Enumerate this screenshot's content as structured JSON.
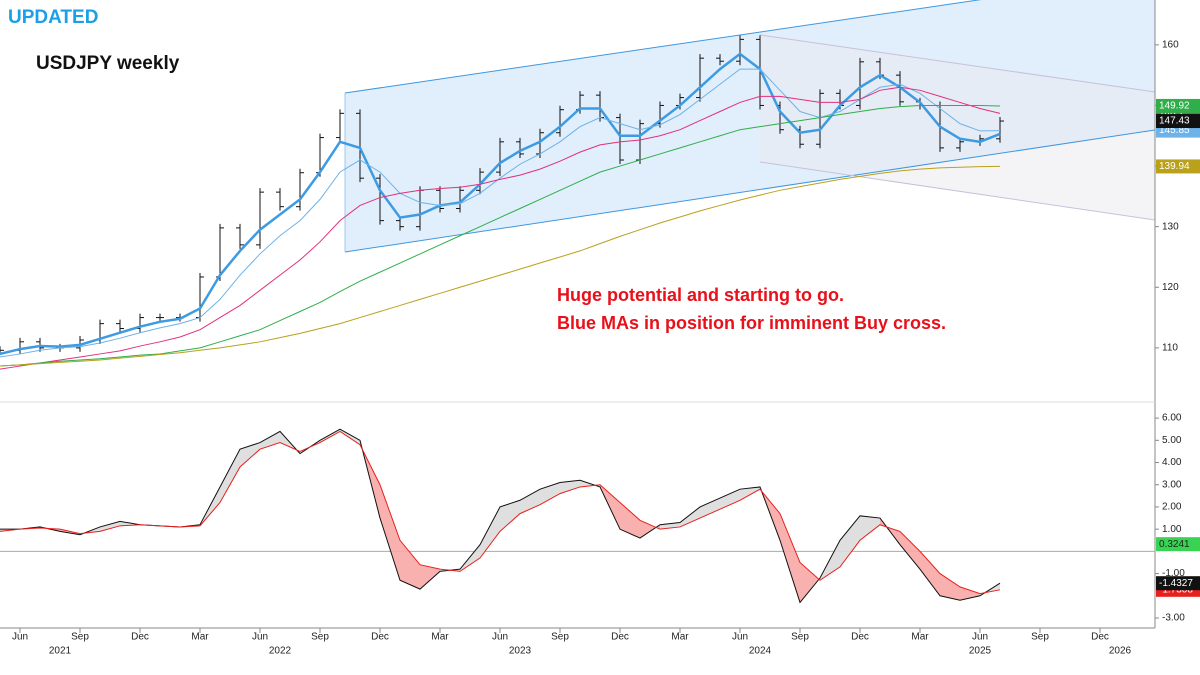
{
  "header": {
    "status": "UPDATED",
    "title": "USDJPY weekly"
  },
  "chart_data": [
    {
      "type": "line",
      "annotations": [
        "Huge potential and starting to go.",
        "Blue MAs in position for imminent Buy cross."
      ],
      "x": [
        "2021-05",
        "2021-06",
        "2021-07",
        "2021-08",
        "2021-09",
        "2021-10",
        "2021-11",
        "2021-12",
        "2022-01",
        "2022-02",
        "2022-03",
        "2022-04",
        "2022-05",
        "2022-06",
        "2022-07",
        "2022-08",
        "2022-09",
        "2022-10",
        "2022-11",
        "2022-12",
        "2023-01",
        "2023-02",
        "2023-03",
        "2023-04",
        "2023-05",
        "2023-06",
        "2023-07",
        "2023-08",
        "2023-09",
        "2023-10",
        "2023-11",
        "2023-12",
        "2024-01",
        "2024-02",
        "2024-03",
        "2024-04",
        "2024-05",
        "2024-06",
        "2024-07",
        "2024-08",
        "2024-09",
        "2024-10",
        "2024-11",
        "2024-12",
        "2025-01",
        "2025-02",
        "2025-03",
        "2025-04",
        "2025-05",
        "2025-06",
        "2025-07"
      ],
      "series": [
        {
          "color": "#111111",
          "style": "bars",
          "values": [
            109.6,
            111,
            110,
            110,
            111.3,
            114,
            113.2,
            115,
            115,
            115,
            121.7,
            129.8,
            127,
            135.7,
            133.3,
            138.9,
            144.7,
            148.7,
            138,
            131,
            130,
            136,
            133,
            136,
            139,
            144,
            142,
            145.5,
            149.3,
            151.7,
            148,
            141,
            147,
            150,
            151.3,
            157.8,
            157.3,
            160.9,
            150,
            146,
            143.6,
            152,
            150,
            157.2,
            155,
            150.6,
            150,
            143,
            144,
            144.5,
            147.43
          ]
        },
        {
          "color": "#3d9be3",
          "width": 2.5,
          "values": [
            109,
            109.8,
            110.3,
            110.2,
            110.5,
            111.5,
            112.5,
            113.5,
            114.3,
            114.8,
            116.5,
            122,
            126,
            129.5,
            132,
            134.5,
            139,
            144,
            143,
            136,
            131.5,
            132,
            133.5,
            134,
            137,
            140.5,
            142.5,
            144,
            146.5,
            149.5,
            149.5,
            145,
            145,
            147.5,
            150,
            153,
            156,
            158.5,
            156,
            149,
            145.5,
            146,
            150,
            153,
            155,
            153,
            150.5,
            146.5,
            144.5,
            144,
            145.3
          ]
        },
        {
          "color": "#6db2e8",
          "width": 1,
          "values": [
            108.5,
            109,
            109.6,
            110,
            110.2,
            110.8,
            111.6,
            112.5,
            113.3,
            114,
            115,
            118,
            122,
            125.5,
            128.5,
            131,
            134.5,
            139,
            141,
            139,
            135.5,
            134,
            133.5,
            133.8,
            135.5,
            138,
            140.3,
            142,
            144,
            146.5,
            148,
            147,
            146,
            146.8,
            148.5,
            151,
            153.5,
            156,
            156,
            152.5,
            149,
            148,
            149,
            151,
            153,
            153.5,
            152,
            149.5,
            147,
            145.8,
            145.85
          ]
        },
        {
          "color": "#e2307c",
          "width": 1,
          "values": [
            106.5,
            107,
            107.5,
            108,
            108.5,
            109,
            109.5,
            110.3,
            111,
            111.8,
            113,
            115,
            117,
            119.5,
            122,
            124.5,
            127.5,
            131,
            133.5,
            134.8,
            135.5,
            136,
            136.3,
            136.5,
            137,
            137.8,
            138.5,
            139.5,
            140.8,
            142.3,
            143.5,
            144,
            144.3,
            145,
            146,
            147.5,
            149,
            150.5,
            151.5,
            151.5,
            151,
            150.5,
            150.5,
            151,
            152.5,
            153,
            152.5,
            151.5,
            150.5,
            149.5,
            148.7
          ]
        },
        {
          "color": "#2eaf4a",
          "width": 1,
          "values": [
            107,
            107.2,
            107.5,
            107.8,
            108,
            108.2,
            108.5,
            108.8,
            109,
            109.5,
            110,
            111,
            112,
            113,
            114.5,
            116,
            117.5,
            119.3,
            121,
            122.5,
            124,
            125.5,
            127,
            128.5,
            130,
            131.5,
            133,
            134.5,
            136,
            137.5,
            139,
            140,
            141,
            142,
            143,
            144,
            145,
            146,
            146.5,
            147,
            147.5,
            148,
            148.5,
            149,
            149.5,
            149.8,
            150,
            150,
            150,
            150,
            149.92
          ]
        },
        {
          "color": "#b9a11c",
          "width": 1,
          "values": [
            107,
            107.2,
            107.4,
            107.6,
            107.8,
            108,
            108.3,
            108.6,
            108.9,
            109.2,
            109.6,
            110,
            110.5,
            111,
            111.7,
            112.4,
            113.2,
            114,
            115,
            116,
            117,
            118,
            119,
            120,
            121,
            122,
            123,
            124,
            125,
            126,
            127.2,
            128.4,
            129.5,
            130.6,
            131.6,
            132.6,
            133.5,
            134.4,
            135.2,
            136,
            136.6,
            137.2,
            137.8,
            138.3,
            138.8,
            139.2,
            139.5,
            139.7,
            139.8,
            139.9,
            139.94
          ]
        }
      ],
      "ylim": [
        101.4,
        167.4
      ],
      "yticks": [
        110,
        120,
        130,
        140,
        150,
        160
      ]
    },
    {
      "type": "line",
      "x": [
        "2021-05",
        "2021-06",
        "2021-07",
        "2021-08",
        "2021-09",
        "2021-10",
        "2021-11",
        "2021-12",
        "2022-01",
        "2022-02",
        "2022-03",
        "2022-04",
        "2022-05",
        "2022-06",
        "2022-07",
        "2022-08",
        "2022-09",
        "2022-10",
        "2022-11",
        "2022-12",
        "2023-01",
        "2023-02",
        "2023-03",
        "2023-04",
        "2023-05",
        "2023-06",
        "2023-07",
        "2023-08",
        "2023-09",
        "2023-10",
        "2023-11",
        "2023-12",
        "2024-01",
        "2024-02",
        "2024-03",
        "2024-04",
        "2024-05",
        "2024-06",
        "2024-07",
        "2024-08",
        "2024-09",
        "2024-10",
        "2024-11",
        "2024-12",
        "2025-01",
        "2025-02",
        "2025-03",
        "2025-04",
        "2025-05",
        "2025-06",
        "2025-07"
      ],
      "series": [
        {
          "color": "#111111",
          "values": [
            1.0,
            1.0,
            1.1,
            0.9,
            0.75,
            1.1,
            1.35,
            1.2,
            1.15,
            1.1,
            1.2,
            2.9,
            4.6,
            4.9,
            5.4,
            4.4,
            5.0,
            5.5,
            5.0,
            1.5,
            -1.3,
            -1.7,
            -0.9,
            -0.8,
            0.3,
            2.0,
            2.3,
            2.8,
            3.1,
            3.2,
            2.9,
            1.0,
            0.6,
            1.2,
            1.3,
            2.0,
            2.4,
            2.8,
            2.9,
            0.5,
            -2.3,
            -1.2,
            0.5,
            1.6,
            1.5,
            0.3,
            -0.8,
            -2.0,
            -2.2,
            -2.0,
            -1.4327
          ]
        },
        {
          "color": "#e8201c",
          "values": [
            0.9,
            1.0,
            1.05,
            1.0,
            0.8,
            0.9,
            1.15,
            1.2,
            1.15,
            1.1,
            1.15,
            2.2,
            3.8,
            4.6,
            4.9,
            4.5,
            4.9,
            5.4,
            4.8,
            3.0,
            0.5,
            -0.6,
            -0.8,
            -0.9,
            -0.3,
            0.9,
            1.7,
            2.1,
            2.6,
            2.9,
            3.0,
            2.2,
            1.4,
            1.0,
            1.1,
            1.5,
            1.9,
            2.3,
            2.8,
            1.7,
            -0.5,
            -1.3,
            -0.7,
            0.5,
            1.2,
            0.9,
            0.0,
            -1.0,
            -1.6,
            -1.9,
            -1.7308
          ]
        }
      ],
      "marker": 0.3241,
      "ylim": [
        -3.45,
        6.59
      ],
      "yticks": [
        {
          "value": -3,
          "label": "-3.00"
        },
        {
          "value": -1,
          "label": "-1.00"
        },
        {
          "value": 1,
          "label": "1.00"
        },
        {
          "value": 2,
          "label": "2.00"
        },
        {
          "value": 3,
          "label": "3.00"
        },
        {
          "value": 4,
          "label": "4.00"
        },
        {
          "value": 5,
          "label": "5.00"
        },
        {
          "value": 6,
          "label": "6.00"
        }
      ],
      "xticks": [
        {
          "value": "2021-06",
          "label": "Jun"
        },
        {
          "value": "2021-09",
          "label": "Sep"
        },
        {
          "value": "2021-12",
          "label": "Dec"
        },
        {
          "value": "2022-03",
          "label": "Mar"
        },
        {
          "value": "2022-06",
          "label": "Jun"
        },
        {
          "value": "2022-09",
          "label": "Sep"
        },
        {
          "value": "2022-12",
          "label": "Dec"
        },
        {
          "value": "2023-03",
          "label": "Mar"
        },
        {
          "value": "2023-06",
          "label": "Jun"
        },
        {
          "value": "2023-09",
          "label": "Sep"
        },
        {
          "value": "2023-12",
          "label": "Dec"
        },
        {
          "value": "2024-03",
          "label": "Mar"
        },
        {
          "value": "2024-06",
          "label": "Jun"
        },
        {
          "value": "2024-09",
          "label": "Sep"
        },
        {
          "value": "2024-12",
          "label": "Dec"
        },
        {
          "value": "2025-03",
          "label": "Mar"
        },
        {
          "value": "2025-06",
          "label": "Jun"
        },
        {
          "value": "2025-09",
          "label": "Sep"
        },
        {
          "value": "2025-12",
          "label": "Dec"
        }
      ],
      "year_ticks": [
        {
          "value": "2021-08",
          "label": "2021"
        },
        {
          "value": "2022-07",
          "label": "2022"
        },
        {
          "value": "2023-07",
          "label": "2023"
        },
        {
          "value": "2024-07",
          "label": "2024"
        },
        {
          "value": "2025-06",
          "label": "2025"
        },
        {
          "value": "2026-01",
          "label": "2026"
        }
      ]
    }
  ]
}
